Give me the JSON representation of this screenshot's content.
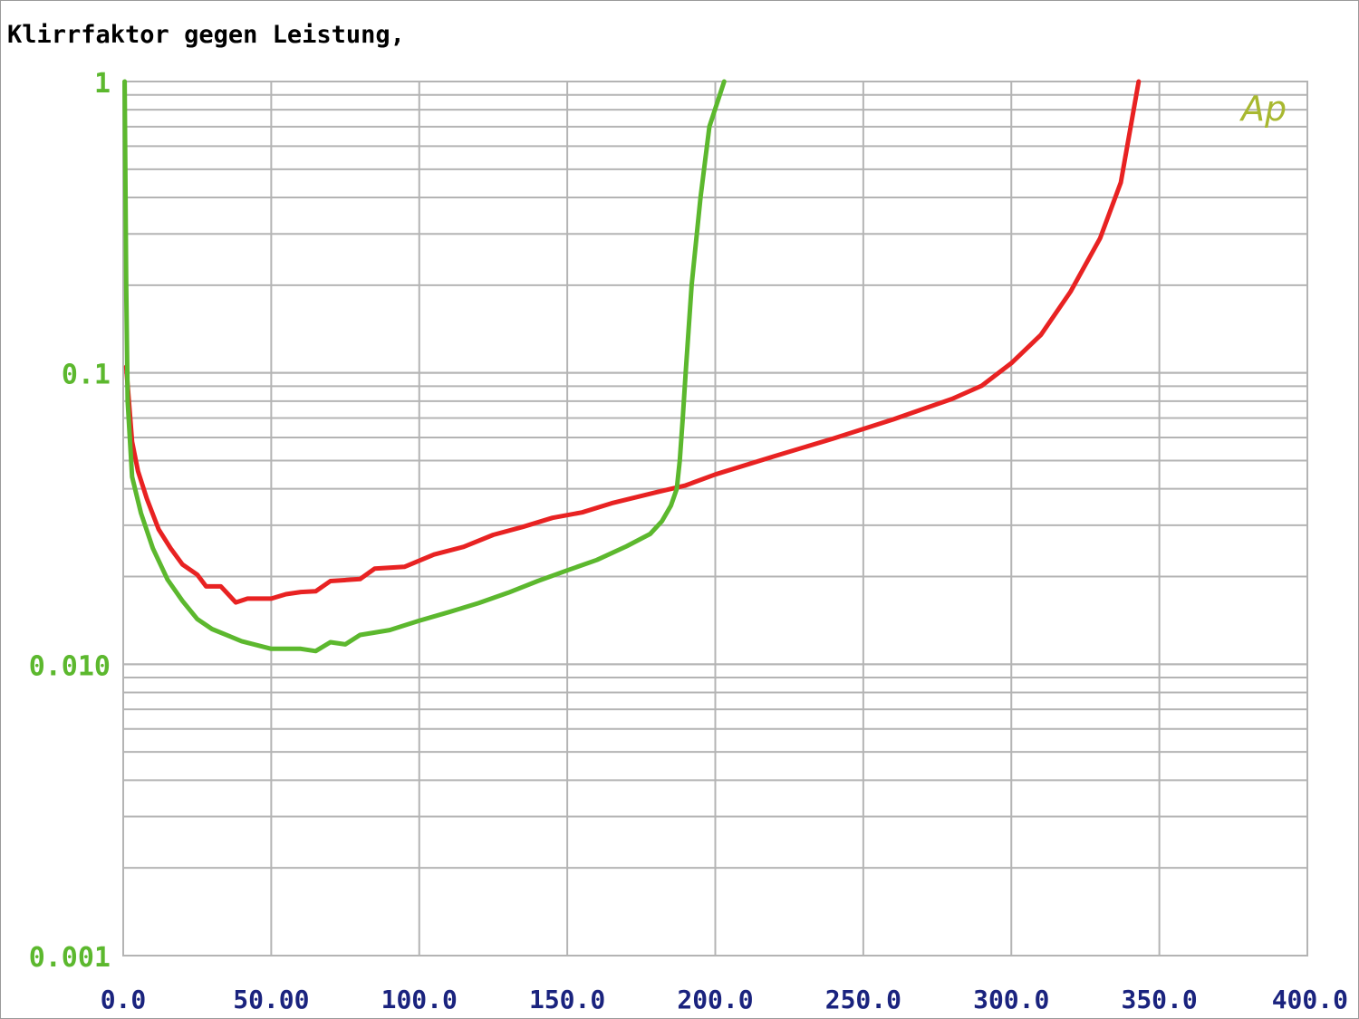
{
  "chart_data": {
    "type": "line",
    "title": "Klirrfaktor gegen Leistung,",
    "xlabel": "",
    "ylabel": "",
    "xlim": [
      0,
      400
    ],
    "ylim": [
      0.001,
      1
    ],
    "y_scale": "log",
    "grid": true,
    "x_tick_labels": [
      "0.0",
      "50.00",
      "100.0",
      "150.0",
      "200.0",
      "250.0",
      "300.0",
      "350.0",
      "400.0"
    ],
    "x_tick_values": [
      0,
      50,
      100,
      150,
      200,
      250,
      300,
      350,
      400
    ],
    "y_tick_labels": [
      "1",
      "0.1",
      "0.010",
      "0.001"
    ],
    "y_tick_values": [
      1,
      0.1,
      0.01,
      0.001
    ],
    "annotation": "Ap",
    "colors": {
      "frame": "#9a9a9a",
      "grid": "#b4b4b4",
      "xtick": "#1a237e",
      "ytick": "#5cb82e",
      "ap": "#a8b830"
    },
    "series": [
      {
        "color": "#e82222",
        "points": [
          [
            1,
            0.105
          ],
          [
            3,
            0.058
          ],
          [
            5,
            0.046
          ],
          [
            8,
            0.037
          ],
          [
            12,
            0.029
          ],
          [
            16,
            0.025
          ],
          [
            20,
            0.022
          ],
          [
            25,
            0.0203
          ],
          [
            28,
            0.0185
          ],
          [
            33,
            0.0185
          ],
          [
            38,
            0.0163
          ],
          [
            42,
            0.0168
          ],
          [
            50,
            0.0168
          ],
          [
            55,
            0.0174
          ],
          [
            60,
            0.0177
          ],
          [
            65,
            0.0178
          ],
          [
            70,
            0.0193
          ],
          [
            80,
            0.0196
          ],
          [
            85,
            0.0213
          ],
          [
            95,
            0.0216
          ],
          [
            105,
            0.0238
          ],
          [
            115,
            0.0253
          ],
          [
            125,
            0.0278
          ],
          [
            135,
            0.0296
          ],
          [
            145,
            0.0318
          ],
          [
            155,
            0.0332
          ],
          [
            165,
            0.0357
          ],
          [
            180,
            0.0389
          ],
          [
            190,
            0.0411
          ],
          [
            200,
            0.0448
          ],
          [
            220,
            0.0518
          ],
          [
            240,
            0.0596
          ],
          [
            260,
            0.0692
          ],
          [
            280,
            0.0814
          ],
          [
            290,
            0.0903
          ],
          [
            300,
            0.108
          ],
          [
            310,
            0.135
          ],
          [
            320,
            0.19
          ],
          [
            330,
            0.29
          ],
          [
            337,
            0.45
          ],
          [
            343,
            1.0
          ]
        ]
      },
      {
        "color": "#5cb82e",
        "points": [
          [
            0.5,
            1.0
          ],
          [
            1,
            0.2
          ],
          [
            1.5,
            0.08
          ],
          [
            3,
            0.044
          ],
          [
            6,
            0.033
          ],
          [
            10,
            0.025
          ],
          [
            15,
            0.0195
          ],
          [
            20,
            0.0165
          ],
          [
            25,
            0.0143
          ],
          [
            30,
            0.0132
          ],
          [
            40,
            0.012
          ],
          [
            50,
            0.0113
          ],
          [
            60,
            0.0113
          ],
          [
            65,
            0.0111
          ],
          [
            70,
            0.0119
          ],
          [
            75,
            0.0117
          ],
          [
            80,
            0.0126
          ],
          [
            90,
            0.0131
          ],
          [
            100,
            0.0141
          ],
          [
            110,
            0.0151
          ],
          [
            120,
            0.0162
          ],
          [
            130,
            0.0176
          ],
          [
            140,
            0.0193
          ],
          [
            150,
            0.021
          ],
          [
            160,
            0.0228
          ],
          [
            170,
            0.0254
          ],
          [
            178,
            0.028
          ],
          [
            182,
            0.031
          ],
          [
            185,
            0.035
          ],
          [
            187,
            0.04
          ],
          [
            188,
            0.05
          ],
          [
            189,
            0.07
          ],
          [
            190,
            0.1
          ],
          [
            192,
            0.2
          ],
          [
            195,
            0.4
          ],
          [
            198,
            0.7
          ],
          [
            203,
            1.0
          ]
        ]
      }
    ]
  }
}
